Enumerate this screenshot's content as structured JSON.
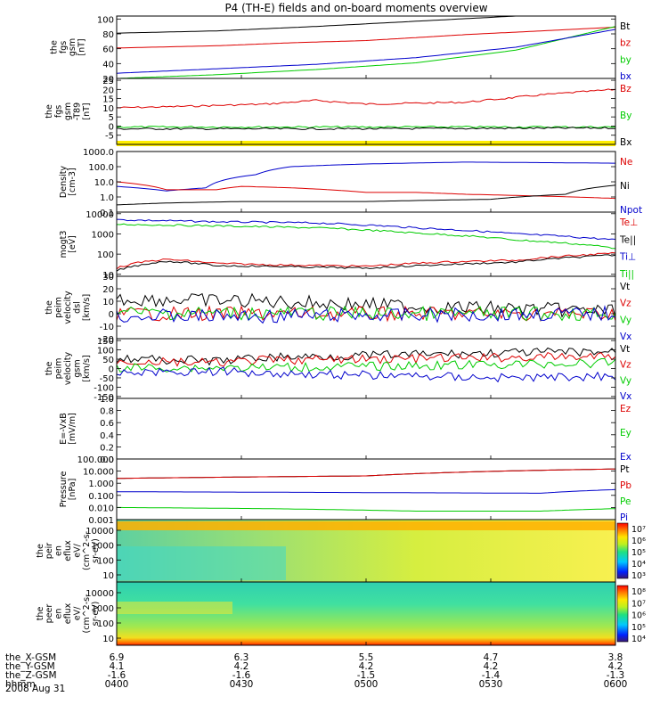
{
  "chart_data": {
    "type": "line",
    "title": "P4 (TH-E) fields and on-board moments overview",
    "x_ticks": [
      "0400",
      "0430",
      "0500",
      "0530",
      "0600"
    ],
    "panels": [
      {
        "id": "fgs-gsm",
        "ylabel": [
          "the",
          "fgs",
          "gsm",
          "[nT]"
        ],
        "yticks": [
          "100",
          "80",
          "60",
          "40",
          "20"
        ],
        "tick_values": [
          100,
          80,
          60,
          40,
          20
        ],
        "ylim": [
          20,
          104
        ],
        "scale": "linear",
        "legend": [
          {
            "name": "Bt",
            "color": "#000000"
          },
          {
            "name": "bz",
            "color": "#dd0000"
          },
          {
            "name": "by",
            "color": "#00cc00"
          },
          {
            "name": "bx",
            "color": "#0000cc"
          }
        ],
        "series": [
          {
            "name": "Bt",
            "color": "#000000",
            "x": [
              0,
              0.2,
              0.4,
              0.6,
              0.8,
              1.0
            ],
            "y": [
              81,
              84,
              90,
              97,
              104,
              110
            ]
          },
          {
            "name": "bz",
            "color": "#dd0000",
            "x": [
              0,
              0.2,
              0.35,
              0.5,
              0.7,
              1.0
            ],
            "y": [
              61,
              64,
              68,
              71,
              79,
              89
            ]
          },
          {
            "name": "by",
            "color": "#00cc00",
            "x": [
              0,
              0.2,
              0.4,
              0.6,
              0.8,
              1.0
            ],
            "y": [
              20,
              25,
              32,
              41,
              58,
              90
            ]
          },
          {
            "name": "bx",
            "color": "#0000cc",
            "x": [
              0,
              0.2,
              0.4,
              0.6,
              0.8,
              1.0
            ],
            "y": [
              27,
              33,
              39,
              48,
              62,
              86
            ]
          }
        ]
      },
      {
        "id": "fgs-gsm-t89",
        "ylabel": [
          "the",
          "fgs",
          "gsm",
          "-T89",
          "[nT]"
        ],
        "yticks": [
          "25",
          "20",
          "15",
          "10",
          "5",
          "0",
          "-5"
        ],
        "tick_values": [
          25,
          20,
          15,
          10,
          5,
          0,
          -5
        ],
        "ylim": [
          -10,
          26
        ],
        "scale": "linear",
        "legend": [
          {
            "name": "Bz",
            "color": "#dd0000"
          },
          {
            "name": "By",
            "color": "#00cc00"
          },
          {
            "name": "Bx",
            "color": "#000000"
          }
        ],
        "series": [
          {
            "name": "Bz",
            "color": "#dd0000",
            "x": [
              0,
              0.1,
              0.3,
              0.4,
              0.5,
              0.7,
              0.85,
              1.0
            ],
            "y": [
              10,
              10.5,
              12,
              14,
              12,
              13,
              17,
              20
            ]
          },
          {
            "name": "By",
            "color": "#00cc00",
            "x": [
              0,
              1
            ],
            "y": [
              -0.5,
              -0.5
            ]
          },
          {
            "name": "Bx",
            "color": "#000000",
            "x": [
              0,
              0.5,
              1
            ],
            "y": [
              -1.5,
              -1.5,
              -1
            ]
          }
        ]
      },
      {
        "id": "density",
        "ylabel": [
          "Density",
          "[cm-3]"
        ],
        "yticks": [
          "1000.0",
          "100.0",
          "10.0",
          "1.0",
          "0.1"
        ],
        "tick_values": [
          1000,
          100,
          10,
          1,
          0.1
        ],
        "ylim": [
          0.1,
          1000
        ],
        "scale": "log",
        "legend": [
          {
            "name": "Ne",
            "color": "#dd0000"
          },
          {
            "name": "Ni",
            "color": "#000000"
          },
          {
            "name": "Npot",
            "color": "#0000cc"
          }
        ],
        "series": [
          {
            "name": "Npot",
            "color": "#0000cc",
            "x": [
              0,
              0.1,
              0.18,
              0.28,
              0.35,
              0.5,
              0.7,
              1.0
            ],
            "y": [
              5,
              2.5,
              4,
              30,
              100,
              150,
              200,
              170
            ]
          },
          {
            "name": "Ne",
            "color": "#dd0000",
            "x": [
              0,
              0.1,
              0.2,
              0.25,
              0.35,
              0.5,
              0.6,
              0.7,
              1.0
            ],
            "y": [
              10,
              3,
              3,
              5,
              4,
              2,
              2,
              1.5,
              0.8
            ]
          },
          {
            "name": "Ni",
            "color": "#000000",
            "x": [
              0,
              0.1,
              0.25,
              0.5,
              0.75,
              0.9,
              1.0
            ],
            "y": [
              0.3,
              0.4,
              0.5,
              0.5,
              0.7,
              1.5,
              6
            ]
          }
        ]
      },
      {
        "id": "temperature",
        "ylabel": [
          "mogt3",
          "[eV]"
        ],
        "yticks": [
          "10000",
          "1000",
          "100",
          "10"
        ],
        "tick_values": [
          10000,
          1000,
          100,
          10
        ],
        "ylim": [
          8,
          12000
        ],
        "scale": "log",
        "legend": [
          {
            "name": "Te⊥",
            "color": "#dd0000"
          },
          {
            "name": "Te||",
            "color": "#000000"
          },
          {
            "name": "Ti⊥",
            "color": "#0000cc"
          },
          {
            "name": "Ti||",
            "color": "#00cc00"
          }
        ],
        "series": [
          {
            "name": "Ti⊥",
            "color": "#0000cc",
            "x": [
              0,
              0.2,
              0.4,
              0.6,
              0.8,
              1.0
            ],
            "y": [
              5000,
              4000,
              3500,
              2000,
              1000,
              500
            ]
          },
          {
            "name": "Ti||",
            "color": "#00cc00",
            "x": [
              0,
              0.2,
              0.4,
              0.6,
              0.8,
              1.0
            ],
            "y": [
              3000,
              2500,
              2000,
              1100,
              500,
              200
            ]
          },
          {
            "name": "Te⊥",
            "color": "#dd0000",
            "x": [
              0,
              0.05,
              0.1,
              0.2,
              0.3,
              0.5,
              0.65,
              0.8,
              1.0
            ],
            "y": [
              20,
              40,
              55,
              35,
              30,
              25,
              40,
              50,
              110
            ]
          },
          {
            "name": "Te||",
            "color": "#000000",
            "x": [
              0,
              0.05,
              0.1,
              0.2,
              0.3,
              0.5,
              0.65,
              0.8,
              1.0
            ],
            "y": [
              15,
              30,
              45,
              27,
              25,
              20,
              30,
              40,
              90
            ]
          }
        ]
      },
      {
        "id": "peim-velocity-dsl",
        "ylabel": [
          "the",
          "peim",
          "velocity",
          "dsl",
          "[km/s]"
        ],
        "yticks": [
          "30",
          "20",
          "10",
          "0",
          "-10",
          "-20"
        ],
        "tick_values": [
          30,
          20,
          10,
          0,
          -10,
          -20
        ],
        "ylim": [
          -20,
          30
        ],
        "scale": "linear",
        "legend": [
          {
            "name": "Vt",
            "color": "#000000"
          },
          {
            "name": "Vz",
            "color": "#dd0000"
          },
          {
            "name": "Vy",
            "color": "#00cc00"
          },
          {
            "name": "Vx",
            "color": "#0000cc"
          }
        ],
        "series": [
          {
            "name": "Vt",
            "color": "#000000",
            "x": [
              0,
              0.3,
              0.6,
              1.0
            ],
            "y": [
              12,
              10,
              6,
              2
            ]
          },
          {
            "name": "Vz",
            "color": "#dd0000",
            "x": [
              0,
              0.3,
              0.6,
              1.0
            ],
            "y": [
              0,
              0,
              0,
              0
            ]
          },
          {
            "name": "Vy",
            "color": "#00cc00",
            "x": [
              0,
              0.3,
              0.6,
              1.0
            ],
            "y": [
              1,
              0.5,
              0,
              0
            ]
          },
          {
            "name": "Vx",
            "color": "#0000cc",
            "x": [
              0,
              0.3,
              0.6,
              1.0
            ],
            "y": [
              -2,
              -2,
              -1,
              0
            ]
          }
        ]
      },
      {
        "id": "peim-velocity-gsm",
        "ylabel": [
          "the",
          "peim",
          "velocity",
          "gsm",
          "[km/s]"
        ],
        "yticks": [
          "150",
          "100",
          "50",
          "0",
          "-50",
          "-100",
          "-150"
        ],
        "tick_values": [
          150,
          100,
          50,
          0,
          -50,
          -100,
          -150
        ],
        "ylim": [
          -160,
          160
        ],
        "scale": "linear",
        "legend": [
          {
            "name": "Vt",
            "color": "#000000"
          },
          {
            "name": "Vz",
            "color": "#dd0000"
          },
          {
            "name": "Vy",
            "color": "#00cc00"
          },
          {
            "name": "Vx",
            "color": "#0000cc"
          }
        ],
        "series": [
          {
            "name": "Vt",
            "color": "#000000",
            "x": [
              0,
              0.2,
              0.3,
              0.5,
              0.8,
              1.0
            ],
            "y": [
              55,
              40,
              60,
              70,
              85,
              90
            ]
          },
          {
            "name": "Vz",
            "color": "#dd0000",
            "x": [
              0,
              0.2,
              0.3,
              0.5,
              0.8,
              1.0
            ],
            "y": [
              40,
              30,
              45,
              50,
              60,
              65
            ]
          },
          {
            "name": "Vy",
            "color": "#00cc00",
            "x": [
              0,
              0.3,
              0.6,
              1.0
            ],
            "y": [
              5,
              5,
              15,
              30
            ]
          },
          {
            "name": "Vx",
            "color": "#0000cc",
            "x": [
              0,
              0.2,
              0.4,
              0.6,
              0.8,
              1.0
            ],
            "y": [
              -20,
              -15,
              -30,
              -40,
              -50,
              -40
            ]
          }
        ]
      },
      {
        "id": "e-field",
        "ylabel": [
          "E=-VxB",
          "[mV/m]"
        ],
        "yticks": [
          "1.0",
          "0.8",
          "0.6",
          "0.4",
          "0.2",
          "0.0"
        ],
        "tick_values": [
          1.0,
          0.8,
          0.6,
          0.4,
          0.2,
          0.0
        ],
        "ylim": [
          0,
          1
        ],
        "scale": "linear",
        "legend": [
          {
            "name": "Ez",
            "color": "#dd0000"
          },
          {
            "name": "Ey",
            "color": "#00cc00"
          },
          {
            "name": "Ex",
            "color": "#0000cc"
          }
        ],
        "series": []
      },
      {
        "id": "pressure",
        "ylabel": [
          "Pressure",
          "[nPa]"
        ],
        "yticks": [
          "100.000",
          "10.000",
          "1.000",
          "0.100",
          "0.010",
          "0.001"
        ],
        "tick_values": [
          100,
          10,
          1,
          0.1,
          0.01,
          0.001
        ],
        "ylim": [
          0.001,
          100
        ],
        "scale": "log",
        "legend": [
          {
            "name": "Pt",
            "color": "#000000"
          },
          {
            "name": "Pb",
            "color": "#dd0000"
          },
          {
            "name": "Pe",
            "color": "#00cc00"
          },
          {
            "name": "Pi",
            "color": "#0000cc"
          }
        ],
        "series": [
          {
            "name": "Pt",
            "color": "#000000",
            "x": [
              0,
              0.5,
              1.0
            ],
            "y": [
              2.5,
              4,
              15
            ]
          },
          {
            "name": "Pb",
            "color": "#dd0000",
            "x": [
              0,
              0.5,
              1.0
            ],
            "y": [
              2.5,
              4,
              15
            ]
          },
          {
            "name": "Pi",
            "color": "#0000cc",
            "x": [
              0,
              0.5,
              0.85,
              1.0
            ],
            "y": [
              0.2,
              0.17,
              0.15,
              0.3
            ]
          },
          {
            "name": "Pe",
            "color": "#00cc00",
            "x": [
              0,
              0.3,
              0.6,
              0.85,
              1.0
            ],
            "y": [
              0.01,
              0.008,
              0.005,
              0.005,
              0.008
            ]
          }
        ]
      },
      {
        "id": "peir-eflux",
        "type": "heatmap",
        "ylabel": [
          "the",
          "peir",
          "en",
          "eflux",
          "eV/",
          "(cm^2-s-",
          "sr-eV)"
        ],
        "yticks": [
          "10000",
          "1000",
          "100",
          "10"
        ],
        "colorbar_ticks": [
          "10⁷",
          "10⁶",
          "10⁵",
          "10⁴",
          "10³"
        ]
      },
      {
        "id": "peer-eflux",
        "type": "heatmap",
        "ylabel": [
          "the",
          "peer",
          "en",
          "eflux",
          "eV/",
          "(cm^2-s-",
          "sr-eV)"
        ],
        "yticks": [
          "10000",
          "1000",
          "100",
          "10"
        ],
        "colorbar_ticks": [
          "10⁸",
          "10⁷",
          "10⁶",
          "10⁵",
          "10⁴"
        ]
      }
    ],
    "ephemeris": [
      {
        "label": "the_X-GSM",
        "values": [
          "6.9",
          "6.3",
          "5.5",
          "4.7",
          "3.8"
        ]
      },
      {
        "label": "the_Y-GSM",
        "values": [
          "4.1",
          "4.2",
          "4.2",
          "4.2",
          "4.2"
        ]
      },
      {
        "label": "the_Z-GSM",
        "values": [
          "-1.6",
          "-1.6",
          "-1.5",
          "-1.4",
          "-1.3"
        ]
      },
      {
        "label": "hhmm",
        "values": [
          "0400",
          "0430",
          "0500",
          "0530",
          "0600"
        ]
      }
    ],
    "date": "2008 Aug 31"
  }
}
